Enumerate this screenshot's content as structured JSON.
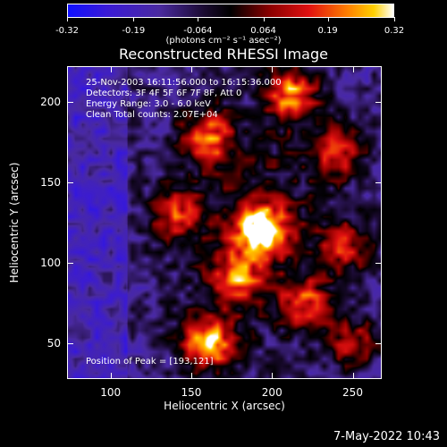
{
  "colorbar": {
    "ticks": [
      "-0.32",
      "-0.19",
      "-0.064",
      "0.064",
      "0.19",
      "0.32"
    ],
    "units_label": "(photons cm⁻² s⁻¹ asec⁻²)",
    "min": -0.32,
    "max": 0.32
  },
  "chart_data": {
    "type": "heatmap",
    "title": "Reconstructed RHESSI Image",
    "xlabel": "Heliocentric X (arcsec)",
    "ylabel": "Heliocentric Y (arcsec)",
    "xlim": [
      73,
      268
    ],
    "ylim": [
      28,
      222
    ],
    "xticks": [
      "100",
      "150",
      "200",
      "250"
    ],
    "yticks": [
      "50",
      "100",
      "150",
      "200"
    ],
    "colormap": "RHESSI purple-black-red-yellow-white",
    "peak": {
      "x": 193,
      "y": 121
    },
    "sources": [
      {
        "x": 193,
        "y": 121,
        "intensity": 0.32
      },
      {
        "x": 160,
        "y": 50,
        "intensity": 0.27
      },
      {
        "x": 212,
        "y": 205,
        "intensity": 0.21
      },
      {
        "x": 160,
        "y": 178,
        "intensity": 0.18
      },
      {
        "x": 178,
        "y": 90,
        "intensity": 0.15
      },
      {
        "x": 240,
        "y": 170,
        "intensity": 0.14
      },
      {
        "x": 220,
        "y": 75,
        "intensity": 0.13
      },
      {
        "x": 140,
        "y": 130,
        "intensity": 0.12
      },
      {
        "x": 245,
        "y": 110,
        "intensity": 0.1
      },
      {
        "x": 250,
        "y": 50,
        "intensity": 0.09
      }
    ],
    "annotations": [
      "25-Nov-2003 16:11:56.000 to 16:15:36.000",
      "Detectors: 3F 4F 5F 6F 7F 8F, Att 0",
      "Energy Range: 3.0 - 6.0 keV",
      "Clean      Total counts: 2.07E+04"
    ],
    "peak_label": "Position of Peak = [193,121]"
  },
  "timestamp": "7-May-2022 10:43"
}
